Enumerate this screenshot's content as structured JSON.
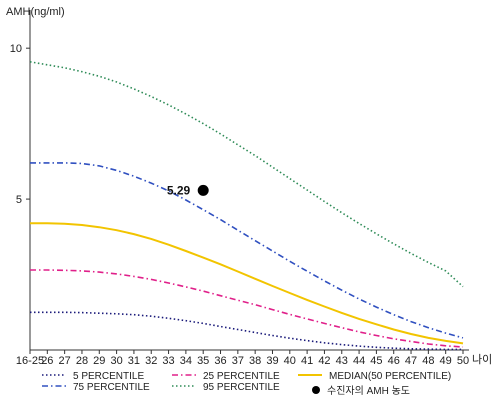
{
  "chart_data": {
    "type": "line",
    "ylabel": "AMH(ng/ml)",
    "xlabel": "나이",
    "categories": [
      "16-25",
      "26",
      "27",
      "28",
      "29",
      "30",
      "31",
      "32",
      "33",
      "34",
      "35",
      "36",
      "37",
      "38",
      "39",
      "40",
      "41",
      "42",
      "43",
      "44",
      "45",
      "46",
      "47",
      "48",
      "49",
      "50"
    ],
    "y_ticks": [
      "5",
      "10"
    ],
    "ylim": [
      0,
      11
    ],
    "grid": false,
    "legend_placement": "bottom",
    "series": [
      {
        "name": "5 PERCENTILE",
        "color": "#1a1a7a",
        "dash": "dotted",
        "values": [
          1.25,
          1.25,
          1.25,
          1.24,
          1.22,
          1.2,
          1.17,
          1.12,
          1.05,
          0.97,
          0.88,
          0.78,
          0.68,
          0.58,
          0.48,
          0.39,
          0.31,
          0.24,
          0.18,
          0.13,
          0.09,
          0.06,
          0.04,
          0.03,
          0.02,
          0.02
        ]
      },
      {
        "name": "25 PERCENTILE",
        "color": "#e0208a",
        "dash": "dashdot",
        "values": [
          2.65,
          2.65,
          2.64,
          2.62,
          2.58,
          2.52,
          2.44,
          2.34,
          2.22,
          2.09,
          1.95,
          1.8,
          1.65,
          1.5,
          1.34,
          1.18,
          1.03,
          0.88,
          0.74,
          0.6,
          0.48,
          0.37,
          0.28,
          0.2,
          0.14,
          0.1
        ]
      },
      {
        "name": "MEDIAN(50 PERCENTILE)",
        "color": "#f2c400",
        "dash": "solid",
        "values": [
          4.2,
          4.2,
          4.18,
          4.14,
          4.07,
          3.97,
          3.84,
          3.68,
          3.49,
          3.28,
          3.06,
          2.84,
          2.6,
          2.36,
          2.12,
          1.89,
          1.66,
          1.44,
          1.23,
          1.03,
          0.85,
          0.68,
          0.53,
          0.4,
          0.3,
          0.22
        ]
      },
      {
        "name": "75 PERCENTILE",
        "color": "#3050c0",
        "dash": "dashdot",
        "values": [
          6.2,
          6.2,
          6.2,
          6.18,
          6.1,
          5.95,
          5.76,
          5.53,
          5.27,
          4.97,
          4.65,
          4.32,
          3.97,
          3.62,
          3.28,
          2.94,
          2.61,
          2.29,
          1.98,
          1.69,
          1.42,
          1.17,
          0.94,
          0.74,
          0.56,
          0.4
        ]
      },
      {
        "name": "95 PERCENTILE",
        "color": "#2e8b57",
        "dash": "dotted",
        "values": [
          9.55,
          9.45,
          9.35,
          9.22,
          9.07,
          8.88,
          8.65,
          8.4,
          8.12,
          7.82,
          7.5,
          7.16,
          6.8,
          6.44,
          6.06,
          5.68,
          5.3,
          4.92,
          4.55,
          4.19,
          3.85,
          3.52,
          3.2,
          2.9,
          2.62,
          2.1
        ]
      }
    ],
    "patient": {
      "name": "수진자의 AMH 농도",
      "category": "35",
      "value": 5.29,
      "label": "5.29",
      "color": "#000000"
    }
  }
}
